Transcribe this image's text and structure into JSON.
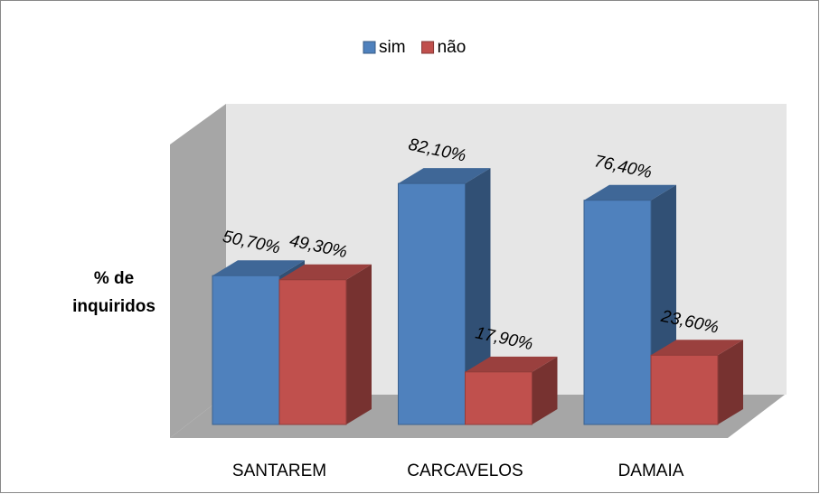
{
  "chart_data": {
    "type": "bar3d",
    "y_label": [
      "% de",
      "inquiridos"
    ],
    "categories": [
      "SANTAREM",
      "CARCAVELOS",
      "DAMAIA"
    ],
    "series": [
      {
        "name": "sim",
        "color": "#4f81bd",
        "values": [
          50.7,
          82.1,
          76.4
        ],
        "value_labels": [
          "50,70%",
          "82,10%",
          "76,40%"
        ]
      },
      {
        "name": "não",
        "color": "#c0504d",
        "values": [
          49.3,
          17.9,
          23.6
        ],
        "value_labels": [
          "49,30%",
          "17,90%",
          "23,60%"
        ]
      }
    ],
    "ylim": [
      0,
      100
    ],
    "legend": "top"
  }
}
